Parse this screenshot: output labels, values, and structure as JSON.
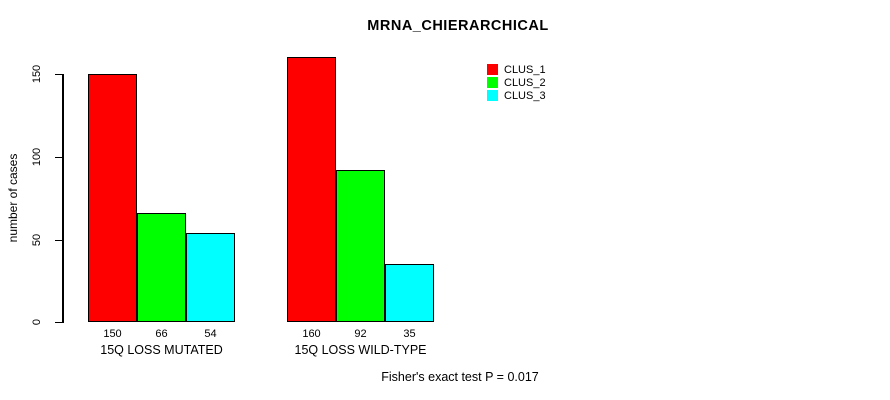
{
  "title": "MRNA_CHIERARCHICAL",
  "footer": "Fisher's exact test P = 0.017",
  "chart_data": {
    "type": "bar",
    "grouped": true,
    "title": "MRNA_CHIERARCHICAL",
    "xlabel": "",
    "ylabel": "number of cases",
    "categories": [
      "15Q LOSS MUTATED",
      "15Q LOSS WILD-TYPE"
    ],
    "series": [
      {
        "name": "CLUS_1",
        "color": "#FF0000",
        "values": [
          150,
          160
        ]
      },
      {
        "name": "CLUS_2",
        "color": "#00FF00",
        "values": [
          66,
          92
        ]
      },
      {
        "name": "CLUS_3",
        "color": "#00FFFF",
        "values": [
          54,
          35
        ]
      }
    ],
    "bar_value_labels": [
      [
        150,
        66,
        54
      ],
      [
        160,
        92,
        35
      ]
    ],
    "yticks": [
      0,
      50,
      100,
      150
    ],
    "ylim": [
      0,
      165
    ],
    "grid": false,
    "legend_position": "top-right",
    "annotation": "Fisher's exact test P = 0.017"
  }
}
